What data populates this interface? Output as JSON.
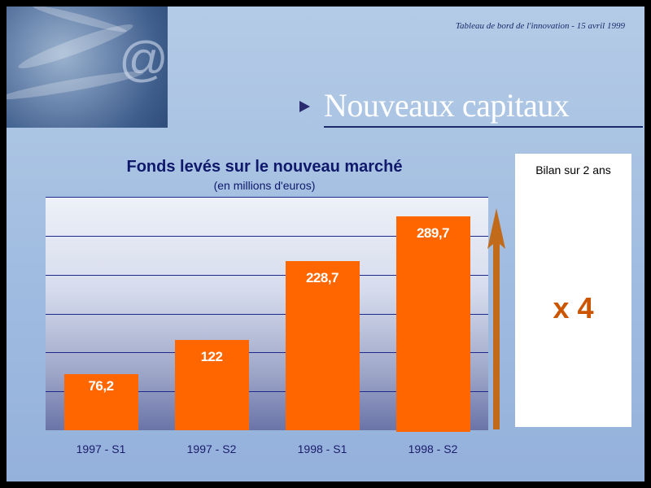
{
  "header": {
    "note": "Tableau de bord de l'innovation - 15 avril 1999"
  },
  "slide": {
    "title": "Nouveaux capitaux"
  },
  "chart_data": {
    "type": "bar",
    "title": "Fonds levés sur le nouveau marché",
    "subtitle": "(en millions d'euros)",
    "categories": [
      "1997 - S1",
      "1997 - S2",
      "1998 - S1",
      "1998 - S2"
    ],
    "values": [
      76.2,
      122,
      228.7,
      289.7
    ],
    "value_labels": [
      "76,2",
      "122",
      "228,7",
      "289,7"
    ],
    "ylim": [
      0,
      300
    ],
    "grid": true,
    "bar_color": "#ff6600"
  },
  "summary": {
    "title": "Bilan sur 2 ans",
    "value": "x 4"
  },
  "colors": {
    "accent": "#ff6600",
    "title_text": "#10186b",
    "summary_value": "#cc5500"
  }
}
